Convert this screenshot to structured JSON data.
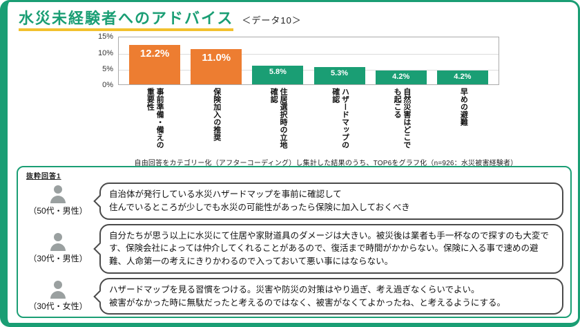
{
  "accent": {
    "green": "#1A9E74",
    "orange": "#ED7D31",
    "underline_gold": "#F2C12E"
  },
  "header": {
    "title": "水災未経験者へのアドバイス",
    "data_label": "＜データ10＞"
  },
  "chart_data": {
    "type": "bar",
    "title": "水災未経験者へのアドバイス",
    "categories": [
      "事前準備・備えの重要性",
      "保険加入の推奨",
      "住居選択時の立地確認",
      "ハザードマップの確認",
      "自然災害はどこでも起こる",
      "早めの避難"
    ],
    "values": [
      12.2,
      11.0,
      5.8,
      5.3,
      4.2,
      4.2
    ],
    "value_labels": [
      "12.2%",
      "11.0%",
      "5.8%",
      "5.3%",
      "4.2%",
      "4.2%"
    ],
    "bar_colors": [
      "#ED7D31",
      "#ED7D31",
      "#1A9E74",
      "#1A9E74",
      "#1A9E74",
      "#1A9E74"
    ],
    "xlabel": "",
    "ylabel": "",
    "ylim": [
      0,
      15
    ],
    "yticks": [
      "15%",
      "10%",
      "5%",
      "0%"
    ],
    "grid": true,
    "legend": "none",
    "footnote": "自由回答をカテゴリー化（アフターコーディング）し集計した結果のうち、TOP6をグラフ化（n=926：水災被害経験者）"
  },
  "quotes": {
    "label": "抜粋回答1",
    "items": [
      {
        "speaker": "（50代・男性）",
        "text": "自治体が発行している水災ハザードマップを事前に確認して\n住んでいるところが少しでも水災の可能性があったら保険に加入しておくべき"
      },
      {
        "speaker": "（30代・男性）",
        "text": "自分たちが思う以上に水災にて住居や家財道具のダメージは大きい。被災後は業者も手一杯なので探すのも大変です、保険会社によっては仲介してくれることがあるので、復活まで時間がかからない。保険に入る事で速めの避難、人命第一の考えにきりかわるので入っておいて悪い事にはならない。"
      },
      {
        "speaker": "（30代・女性）",
        "text": "ハザードマップを見る習慣をつける。災害や防災の対策はやり過ぎ、考え過ぎなくらいでよい。\n被害がなかった時に無駄だったと考えるのではなく、被害がなくてよかったね、と考えるようにする。"
      }
    ]
  }
}
